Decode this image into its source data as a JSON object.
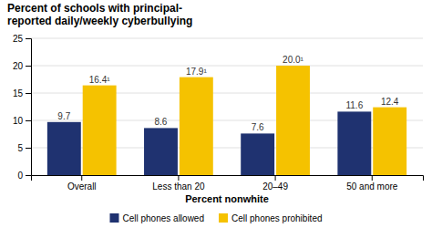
{
  "chart_data": {
    "type": "bar",
    "title": "Percent of schools with principal-\nreported daily/weekly cyberbullying",
    "x_label": "Percent nonwhite",
    "categories": [
      "Overall",
      "Less than 20",
      "20–49",
      "50 and more"
    ],
    "series": [
      {
        "name": "Cell phones allowed",
        "color": "#1f3270",
        "values": [
          9.7,
          8.6,
          7.6,
          11.6
        ]
      },
      {
        "name": "Cell phones prohibited",
        "color": "#f5c200",
        "values": [
          16.4,
          17.9,
          20.0,
          12.4
        ],
        "value_labels": [
          "16.4¹",
          "17.9¹",
          "20.0¹",
          "12.4"
        ]
      }
    ],
    "ylim": [
      0,
      25
    ],
    "yticks": [
      0,
      5,
      10,
      15,
      20,
      25
    ],
    "grid": true,
    "legend": "bottom",
    "data_labels": true
  }
}
